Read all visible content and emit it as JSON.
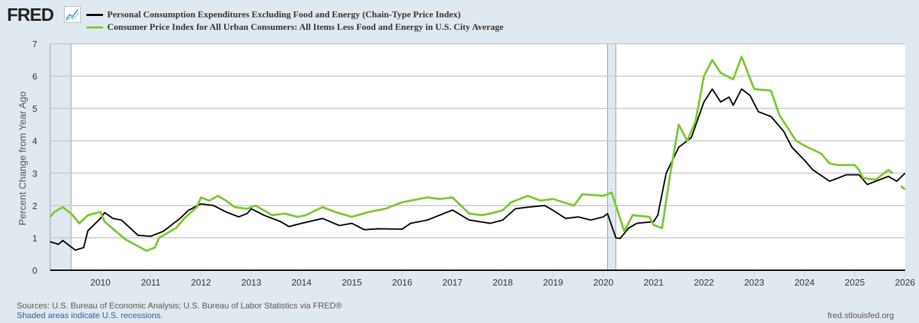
{
  "logo": "FRED",
  "footer": {
    "sources": "Sources: U.S. Bureau of Economic Analysis; U.S. Bureau of Labor Statistics via FRED®",
    "recessions": "Shaded areas indicate U.S. recessions.",
    "site": "fred.stlouisfed.org"
  },
  "chart_data": {
    "type": "line",
    "ylabel": "Percent Change from Year Ago",
    "ylim": [
      0,
      7
    ],
    "yticks": [
      "0",
      "1",
      "2",
      "3",
      "4",
      "5",
      "6",
      "7"
    ],
    "xlim": [
      "2009-01",
      "2026-01"
    ],
    "xticks": [
      "2010",
      "2011",
      "2012",
      "2013",
      "2014",
      "2015",
      "2016",
      "2017",
      "2018",
      "2019",
      "2020",
      "2021",
      "2022",
      "2023",
      "2024",
      "2025",
      "2026"
    ],
    "grid": "horizontal",
    "legend": "top",
    "recessions": [
      [
        "2009-01",
        "2009-06"
      ],
      [
        "2020-02",
        "2020-04"
      ]
    ],
    "series": [
      {
        "name": "Personal Consumption Expenditures Excluding Food and Energy (Chain-Type Price Index)",
        "color": "#000000",
        "points": [
          [
            "2009-01",
            0.88
          ],
          [
            "2009-03",
            0.8
          ],
          [
            "2009-04",
            0.92
          ],
          [
            "2009-07",
            0.62
          ],
          [
            "2009-09",
            0.7
          ],
          [
            "2009-10",
            1.22
          ],
          [
            "2010-01",
            1.6
          ],
          [
            "2010-02",
            1.78
          ],
          [
            "2010-04",
            1.6
          ],
          [
            "2010-06",
            1.55
          ],
          [
            "2010-10",
            1.08
          ],
          [
            "2011-01",
            1.05
          ],
          [
            "2011-04",
            1.2
          ],
          [
            "2011-08",
            1.6
          ],
          [
            "2011-10",
            1.85
          ],
          [
            "2012-01",
            2.05
          ],
          [
            "2012-04",
            2.0
          ],
          [
            "2012-07",
            1.8
          ],
          [
            "2012-10",
            1.65
          ],
          [
            "2012-12",
            1.75
          ],
          [
            "2013-01",
            1.9
          ],
          [
            "2013-04",
            1.7
          ],
          [
            "2013-08",
            1.5
          ],
          [
            "2013-10",
            1.35
          ],
          [
            "2014-01",
            1.45
          ],
          [
            "2014-06",
            1.6
          ],
          [
            "2014-10",
            1.38
          ],
          [
            "2015-01",
            1.45
          ],
          [
            "2015-04",
            1.25
          ],
          [
            "2015-07",
            1.28
          ],
          [
            "2016-01",
            1.27
          ],
          [
            "2016-03",
            1.45
          ],
          [
            "2016-07",
            1.55
          ],
          [
            "2017-01",
            1.86
          ],
          [
            "2017-05",
            1.55
          ],
          [
            "2017-10",
            1.45
          ],
          [
            "2018-01",
            1.55
          ],
          [
            "2018-04",
            1.9
          ],
          [
            "2018-07",
            1.95
          ],
          [
            "2018-11",
            2.0
          ],
          [
            "2019-01",
            1.85
          ],
          [
            "2019-04",
            1.6
          ],
          [
            "2019-07",
            1.65
          ],
          [
            "2019-10",
            1.55
          ],
          [
            "2020-01",
            1.65
          ],
          [
            "2020-02",
            1.75
          ],
          [
            "2020-04",
            1.0
          ],
          [
            "2020-05",
            0.98
          ],
          [
            "2020-07",
            1.3
          ],
          [
            "2020-09",
            1.45
          ],
          [
            "2021-01",
            1.5
          ],
          [
            "2021-02",
            1.7
          ],
          [
            "2021-04",
            3.0
          ],
          [
            "2021-07",
            3.8
          ],
          [
            "2021-10",
            4.1
          ],
          [
            "2022-01",
            5.2
          ],
          [
            "2022-03",
            5.6
          ],
          [
            "2022-05",
            5.2
          ],
          [
            "2022-07",
            5.35
          ],
          [
            "2022-08",
            5.1
          ],
          [
            "2022-10",
            5.6
          ],
          [
            "2022-12",
            5.4
          ],
          [
            "2023-02",
            4.9
          ],
          [
            "2023-05",
            4.75
          ],
          [
            "2023-08",
            4.3
          ],
          [
            "2023-10",
            3.8
          ],
          [
            "2024-01",
            3.4
          ],
          [
            "2024-03",
            3.1
          ],
          [
            "2024-07",
            2.75
          ],
          [
            "2024-09",
            2.85
          ],
          [
            "2024-11",
            2.95
          ],
          [
            "2025-02",
            2.95
          ],
          [
            "2025-03",
            2.8
          ],
          [
            "2025-04",
            2.65
          ],
          [
            "2025-07",
            2.8
          ],
          [
            "2025-09",
            2.9
          ],
          [
            "2025-11",
            2.75
          ],
          [
            "2026-01",
            3.0
          ]
        ]
      },
      {
        "name": "Consumer Price Index for All Urban Consumers: All Items Less Food and Energy in U.S. City Average",
        "color": "#7cc832",
        "points": [
          [
            "2009-01",
            1.65
          ],
          [
            "2009-02",
            1.8
          ],
          [
            "2009-04",
            1.95
          ],
          [
            "2009-06",
            1.75
          ],
          [
            "2009-08",
            1.45
          ],
          [
            "2009-10",
            1.7
          ],
          [
            "2010-01",
            1.8
          ],
          [
            "2010-02",
            1.5
          ],
          [
            "2010-07",
            0.95
          ],
          [
            "2010-12",
            0.6
          ],
          [
            "2011-02",
            0.7
          ],
          [
            "2011-03",
            1.0
          ],
          [
            "2011-07",
            1.3
          ],
          [
            "2011-09",
            1.6
          ],
          [
            "2011-12",
            1.95
          ],
          [
            "2012-01",
            2.25
          ],
          [
            "2012-03",
            2.15
          ],
          [
            "2012-05",
            2.3
          ],
          [
            "2012-07",
            2.15
          ],
          [
            "2012-09",
            1.95
          ],
          [
            "2012-12",
            1.9
          ],
          [
            "2013-02",
            2.0
          ],
          [
            "2013-06",
            1.7
          ],
          [
            "2013-09",
            1.75
          ],
          [
            "2013-12",
            1.65
          ],
          [
            "2014-02",
            1.7
          ],
          [
            "2014-06",
            1.95
          ],
          [
            "2014-09",
            1.8
          ],
          [
            "2015-01",
            1.65
          ],
          [
            "2015-05",
            1.8
          ],
          [
            "2015-09",
            1.9
          ],
          [
            "2016-01",
            2.1
          ],
          [
            "2016-05",
            2.2
          ],
          [
            "2016-07",
            2.25
          ],
          [
            "2016-10",
            2.2
          ],
          [
            "2017-01",
            2.25
          ],
          [
            "2017-05",
            1.75
          ],
          [
            "2017-08",
            1.7
          ],
          [
            "2017-10",
            1.75
          ],
          [
            "2018-01",
            1.85
          ],
          [
            "2018-03",
            2.1
          ],
          [
            "2018-07",
            2.3
          ],
          [
            "2018-10",
            2.15
          ],
          [
            "2019-01",
            2.2
          ],
          [
            "2019-06",
            2.0
          ],
          [
            "2019-08",
            2.35
          ],
          [
            "2020-01",
            2.3
          ],
          [
            "2020-03",
            2.4
          ],
          [
            "2020-05",
            1.6
          ],
          [
            "2020-06",
            1.2
          ],
          [
            "2020-08",
            1.7
          ],
          [
            "2020-12",
            1.65
          ],
          [
            "2021-01",
            1.4
          ],
          [
            "2021-03",
            1.3
          ],
          [
            "2021-05",
            3.0
          ],
          [
            "2021-07",
            4.5
          ],
          [
            "2021-09",
            4.0
          ],
          [
            "2021-11",
            4.6
          ],
          [
            "2022-01",
            6.0
          ],
          [
            "2022-03",
            6.5
          ],
          [
            "2022-05",
            6.1
          ],
          [
            "2022-08",
            5.9
          ],
          [
            "2022-10",
            6.6
          ],
          [
            "2023-01",
            5.6
          ],
          [
            "2023-05",
            5.55
          ],
          [
            "2023-07",
            4.8
          ],
          [
            "2023-11",
            4.0
          ],
          [
            "2024-01",
            3.85
          ],
          [
            "2024-05",
            3.6
          ],
          [
            "2024-07",
            3.3
          ],
          [
            "2024-09",
            3.25
          ],
          [
            "2025-01",
            3.25
          ],
          [
            "2025-02",
            3.1
          ],
          [
            "2025-03",
            2.85
          ],
          [
            "2025-06",
            2.8
          ],
          [
            "2025-09",
            3.1
          ],
          [
            "2025-10",
            3.0
          ],
          null,
          [
            "2025-12",
            2.6
          ],
          [
            "2026-01",
            2.5
          ]
        ]
      }
    ]
  }
}
